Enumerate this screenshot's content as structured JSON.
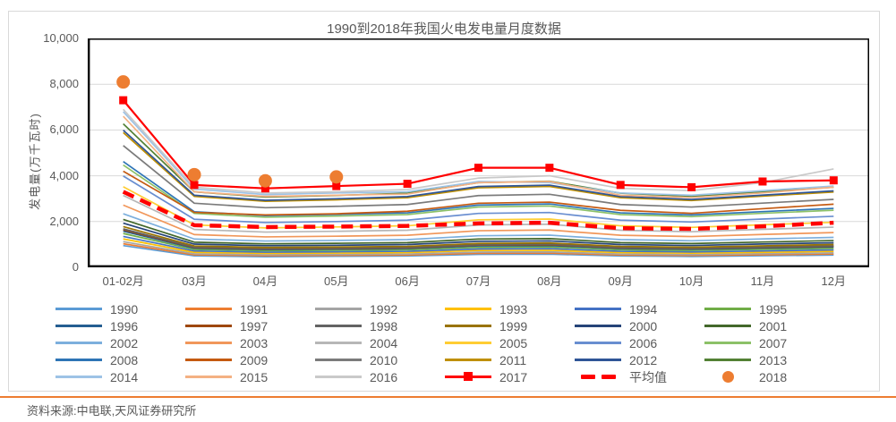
{
  "title": "1990到2018年我国火电发电量月度数据",
  "y_axis": {
    "label": "发电量(万千瓦时)",
    "ticks": [
      "10,000",
      "8,000",
      "6,000",
      "4,000",
      "2,000",
      "0"
    ]
  },
  "footer": {
    "source": "资料来源:中电联,天风证券研究所",
    "rule_color": "#ED7D31"
  },
  "colors": {
    "axis_text": "#595959",
    "gridline": "#D9D9D9",
    "plot_border": "#000000",
    "box_border": "#D9D9D9",
    "highlight_red": "#FF0000",
    "dot_orange": "#ED7D31"
  },
  "chart_data": {
    "type": "line",
    "title": "1990到2018年我国火电发电量月度数据",
    "xlabel": "",
    "ylabel": "发电量(万千瓦时)",
    "ylim": [
      0,
      10000
    ],
    "yticks": [
      0,
      2000,
      4000,
      6000,
      8000,
      10000
    ],
    "gridlines": [
      2000,
      4000,
      6000,
      8000
    ],
    "grid": true,
    "legend_position": "bottom",
    "categories": [
      "01-02月",
      "03月",
      "04月",
      "05月",
      "06月",
      "07月",
      "08月",
      "09月",
      "10月",
      "11月",
      "12月"
    ],
    "series": [
      {
        "name": "1990",
        "color": "#5B9BD5",
        "style": "line",
        "values": [
          950,
          500,
          465,
          480,
          495,
          565,
          575,
          495,
          475,
          505,
          535
        ]
      },
      {
        "name": "1991",
        "color": "#ED7D31",
        "style": "line",
        "values": [
          1030,
          545,
          505,
          520,
          535,
          610,
          620,
          535,
          515,
          545,
          580
        ]
      },
      {
        "name": "1992",
        "color": "#A5A5A5",
        "style": "line",
        "values": [
          1120,
          590,
          550,
          565,
          580,
          665,
          675,
          580,
          560,
          595,
          630
        ]
      },
      {
        "name": "1993",
        "color": "#FFC000",
        "style": "line",
        "values": [
          1240,
          655,
          610,
          625,
          645,
          735,
          745,
          645,
          620,
          655,
          695
        ]
      },
      {
        "name": "1994",
        "color": "#4472C4",
        "style": "line",
        "values": [
          1350,
          715,
          665,
          680,
          700,
          800,
          815,
          700,
          675,
          715,
          760
        ]
      },
      {
        "name": "1995",
        "color": "#70AD47",
        "style": "line",
        "values": [
          1480,
          780,
          725,
          745,
          765,
          875,
          890,
          765,
          740,
          785,
          830
        ]
      },
      {
        "name": "1996",
        "color": "#255E91",
        "style": "line",
        "values": [
          1580,
          835,
          775,
          795,
          820,
          935,
          950,
          820,
          790,
          840,
          890
        ]
      },
      {
        "name": "1997",
        "color": "#9E480E",
        "style": "line",
        "values": [
          1640,
          865,
          805,
          825,
          850,
          970,
          985,
          850,
          820,
          870,
          920
        ]
      },
      {
        "name": "1998",
        "color": "#636363",
        "style": "line",
        "values": [
          1680,
          885,
          825,
          845,
          870,
          990,
          1010,
          870,
          835,
          890,
          940
        ]
      },
      {
        "name": "1999",
        "color": "#997300",
        "style": "line",
        "values": [
          1780,
          935,
          870,
          890,
          915,
          1045,
          1065,
          915,
          880,
          940,
          995
        ]
      },
      {
        "name": "2000",
        "color": "#264478",
        "style": "line",
        "values": [
          1930,
          1015,
          945,
          965,
          995,
          1135,
          1155,
          995,
          955,
          1020,
          1075
        ]
      },
      {
        "name": "2001",
        "color": "#43682B",
        "style": "line",
        "values": [
          2090,
          1100,
          1025,
          1050,
          1080,
          1235,
          1255,
          1080,
          1040,
          1105,
          1170
        ]
      },
      {
        "name": "2002",
        "color": "#7CAFDD",
        "style": "line",
        "values": [
          2340,
          1235,
          1150,
          1175,
          1210,
          1380,
          1405,
          1210,
          1160,
          1240,
          1310
        ]
      },
      {
        "name": "2003",
        "color": "#F1975A",
        "style": "line",
        "values": [
          2720,
          1430,
          1330,
          1360,
          1400,
          1600,
          1630,
          1400,
          1345,
          1435,
          1520
        ]
      },
      {
        "name": "2004",
        "color": "#B7B7B7",
        "style": "line",
        "values": [
          3140,
          1655,
          1540,
          1575,
          1620,
          1850,
          1885,
          1620,
          1555,
          1660,
          1755
        ]
      },
      {
        "name": "2005",
        "color": "#FFCD33",
        "style": "line",
        "values": [
          3520,
          1855,
          1725,
          1765,
          1815,
          2075,
          2110,
          1815,
          1745,
          1860,
          1965
        ]
      },
      {
        "name": "2006",
        "color": "#698ED0",
        "style": "line",
        "values": [
          3990,
          2100,
          1955,
          2000,
          2060,
          2355,
          2395,
          2060,
          1980,
          2110,
          2230
        ]
      },
      {
        "name": "2007",
        "color": "#8CC168",
        "style": "line",
        "values": [
          4470,
          2355,
          2190,
          2240,
          2305,
          2635,
          2680,
          2305,
          2215,
          2360,
          2495
        ]
      },
      {
        "name": "2008",
        "color": "#2E75B6",
        "style": "line",
        "values": [
          4620,
          2430,
          2260,
          2315,
          2380,
          2720,
          2770,
          2380,
          2290,
          2435,
          2575
        ]
      },
      {
        "name": "2009",
        "color": "#C55A11",
        "style": "line",
        "values": [
          4200,
          2400,
          2290,
          2340,
          2450,
          2800,
          2850,
          2490,
          2360,
          2560,
          2760
        ]
      },
      {
        "name": "2010",
        "color": "#7B7B7B",
        "style": "line",
        "values": [
          5320,
          2800,
          2605,
          2665,
          2745,
          3135,
          3190,
          2745,
          2635,
          2805,
          2970
        ]
      },
      {
        "name": "2011",
        "color": "#BF8F00",
        "style": "line",
        "values": [
          5890,
          3100,
          2885,
          2950,
          3040,
          3475,
          3535,
          3040,
          2920,
          3110,
          3290
        ]
      },
      {
        "name": "2012",
        "color": "#2F5597",
        "style": "line",
        "values": [
          5990,
          3150,
          2930,
          2995,
          3090,
          3530,
          3590,
          3090,
          2965,
          3155,
          3340
        ]
      },
      {
        "name": "2013",
        "color": "#538135",
        "style": "line",
        "values": [
          6270,
          3300,
          3070,
          3140,
          3240,
          3700,
          3760,
          3240,
          3105,
          3305,
          3500
        ]
      },
      {
        "name": "2014",
        "color": "#9DC3E6",
        "style": "line",
        "values": [
          6800,
          3420,
          3180,
          3250,
          3300,
          3750,
          3700,
          3250,
          3150,
          3350,
          3550
        ]
      },
      {
        "name": "2015",
        "color": "#F4B183",
        "style": "line",
        "values": [
          6600,
          3300,
          3100,
          3150,
          3200,
          3700,
          3750,
          3150,
          3050,
          3250,
          3500
        ]
      },
      {
        "name": "2016",
        "color": "#C9C9C9",
        "style": "line",
        "values": [
          6900,
          3500,
          3250,
          3300,
          3400,
          3900,
          4000,
          3450,
          3350,
          3700,
          4300
        ]
      },
      {
        "name": "平均值",
        "color": "#FF0000",
        "style": "dash",
        "values": [
          3300,
          1840,
          1760,
          1780,
          1810,
          1920,
          1950,
          1710,
          1680,
          1790,
          1950
        ]
      },
      {
        "name": "2017",
        "color": "#FF0000",
        "style": "line-square",
        "values": [
          7300,
          3600,
          3450,
          3550,
          3650,
          4350,
          4350,
          3600,
          3500,
          3750,
          3800
        ]
      },
      {
        "name": "2018",
        "color": "#ED7D31",
        "style": "dots",
        "values": [
          8100,
          4050,
          3780,
          3950,
          null,
          null,
          null,
          null,
          null,
          null,
          null
        ]
      }
    ],
    "legend_order": [
      "1990",
      "1991",
      "1992",
      "1993",
      "1994",
      "1995",
      "1996",
      "1997",
      "1998",
      "1999",
      "2000",
      "2001",
      "2002",
      "2003",
      "2004",
      "2005",
      "2006",
      "2007",
      "2008",
      "2009",
      "2010",
      "2011",
      "2012",
      "2013",
      "2014",
      "2015",
      "2016",
      "2017",
      "平均值",
      "2018"
    ]
  }
}
